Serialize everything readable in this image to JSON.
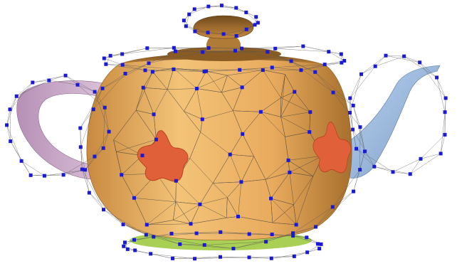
{
  "scene": {
    "subject": "teapot-with-control-cage",
    "colors": {
      "background": "#ffffff",
      "body": "#e8a85a",
      "body_light": "#f3c378",
      "body_dark": "#9e6a2a",
      "handle": "#c9a9c8",
      "spout": "#9dbbe0",
      "base_rim": "#a9cf55",
      "flower": "#e0603a",
      "flower_dark": "#b8441f",
      "mesh_line": "#3a3a3a",
      "cage_line": "#555555",
      "control_point": "#1a1ad6"
    }
  }
}
